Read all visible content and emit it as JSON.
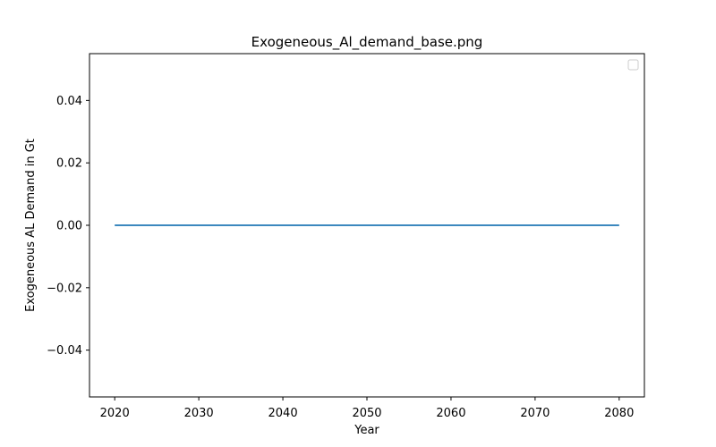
{
  "chart_data": {
    "type": "line",
    "title": "Exogeneous_Al_demand_base.png",
    "xlabel": "Year",
    "ylabel": "Exogeneous AL Demand in Gt",
    "xlim": [
      2017,
      2083
    ],
    "ylim": [
      -0.055,
      0.055
    ],
    "x_ticks": [
      2020,
      2030,
      2040,
      2050,
      2060,
      2070,
      2080
    ],
    "y_ticks": [
      -0.04,
      -0.02,
      0.0,
      0.02,
      0.04
    ],
    "y_tick_labels": [
      "−0.04",
      "−0.02",
      "0.00",
      "0.02",
      "0.04"
    ],
    "grid": false,
    "legend": {
      "placement": "top-right",
      "entries": []
    },
    "series": [
      {
        "color": "#1f77b4",
        "x": [
          2020,
          2080
        ],
        "y": [
          0,
          0
        ]
      }
    ]
  }
}
